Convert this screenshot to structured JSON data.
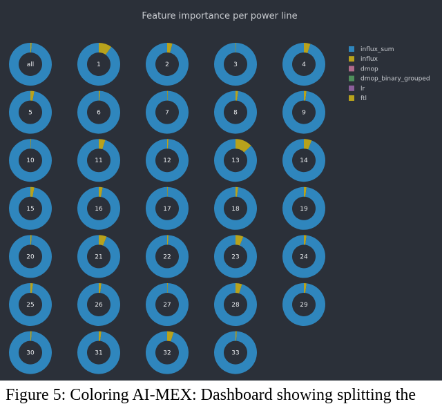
{
  "chart_data": {
    "type": "pie",
    "subtype": "donut-grid",
    "title": "Feature importance per power line",
    "legend": [
      "influx_sum",
      "influx",
      "dmop",
      "dmop_binary_grouped",
      "lr",
      "ftl"
    ],
    "colors": [
      "#2f86bd",
      "#b8a21c",
      "#b06a8b",
      "#4f8f5b",
      "#8b5e9b",
      "#b8a21c"
    ],
    "legend_placement": "top-right",
    "charts": [
      {
        "label": "all",
        "values": [
          0.99,
          0.0,
          0.0,
          0.0,
          0.0,
          0.01
        ]
      },
      {
        "label": "1",
        "values": [
          0.9,
          0.0,
          0.0,
          0.0,
          0.0,
          0.1
        ]
      },
      {
        "label": "2",
        "values": [
          0.96,
          0.0,
          0.0,
          0.0,
          0.0,
          0.04
        ]
      },
      {
        "label": "3",
        "values": [
          0.995,
          0.0,
          0.0,
          0.0,
          0.0,
          0.005
        ]
      },
      {
        "label": "4",
        "values": [
          0.95,
          0.0,
          0.0,
          0.0,
          0.0,
          0.05
        ]
      },
      {
        "label": "5",
        "values": [
          0.97,
          0.0,
          0.0,
          0.0,
          0.0,
          0.03
        ]
      },
      {
        "label": "6",
        "values": [
          0.99,
          0.0,
          0.0,
          0.0,
          0.0,
          0.01
        ]
      },
      {
        "label": "7",
        "values": [
          0.995,
          0.0,
          0.0,
          0.0,
          0.0,
          0.005
        ]
      },
      {
        "label": "8",
        "values": [
          0.98,
          0.0,
          0.0,
          0.0,
          0.0,
          0.02
        ]
      },
      {
        "label": "9",
        "values": [
          0.98,
          0.0,
          0.0,
          0.0,
          0.0,
          0.02
        ]
      },
      {
        "label": "10",
        "values": [
          0.995,
          0.0,
          0.0,
          0.0,
          0.0,
          0.005
        ]
      },
      {
        "label": "11",
        "values": [
          0.95,
          0.0,
          0.0,
          0.0,
          0.0,
          0.05
        ]
      },
      {
        "label": "12",
        "values": [
          0.99,
          0.0,
          0.0,
          0.0,
          0.0,
          0.01
        ]
      },
      {
        "label": "13",
        "values": [
          0.87,
          0.0,
          0.0,
          0.0,
          0.0,
          0.13
        ]
      },
      {
        "label": "14",
        "values": [
          0.94,
          0.0,
          0.0,
          0.0,
          0.0,
          0.06
        ]
      },
      {
        "label": "15",
        "values": [
          0.97,
          0.0,
          0.0,
          0.0,
          0.0,
          0.03
        ]
      },
      {
        "label": "16",
        "values": [
          0.97,
          0.0,
          0.0,
          0.0,
          0.0,
          0.03
        ]
      },
      {
        "label": "17",
        "values": [
          0.995,
          0.0,
          0.0,
          0.0,
          0.0,
          0.005
        ]
      },
      {
        "label": "18",
        "values": [
          0.98,
          0.0,
          0.0,
          0.0,
          0.0,
          0.02
        ]
      },
      {
        "label": "19",
        "values": [
          0.98,
          0.0,
          0.0,
          0.0,
          0.0,
          0.02
        ]
      },
      {
        "label": "20",
        "values": [
          0.99,
          0.0,
          0.0,
          0.0,
          0.0,
          0.01
        ]
      },
      {
        "label": "21",
        "values": [
          0.94,
          0.0,
          0.0,
          0.0,
          0.0,
          0.06
        ]
      },
      {
        "label": "22",
        "values": [
          0.99,
          0.0,
          0.0,
          0.0,
          0.0,
          0.01
        ]
      },
      {
        "label": "23",
        "values": [
          0.94,
          0.0,
          0.0,
          0.0,
          0.0,
          0.06
        ]
      },
      {
        "label": "24",
        "values": [
          0.98,
          0.0,
          0.0,
          0.0,
          0.0,
          0.02
        ]
      },
      {
        "label": "25",
        "values": [
          0.98,
          0.0,
          0.0,
          0.0,
          0.0,
          0.02
        ]
      },
      {
        "label": "26",
        "values": [
          0.98,
          0.0,
          0.0,
          0.0,
          0.0,
          0.02
        ]
      },
      {
        "label": "27",
        "values": [
          0.995,
          0.0,
          0.0,
          0.0,
          0.0,
          0.005
        ]
      },
      {
        "label": "28",
        "values": [
          0.95,
          0.0,
          0.0,
          0.0,
          0.0,
          0.05
        ]
      },
      {
        "label": "29",
        "values": [
          0.98,
          0.0,
          0.0,
          0.0,
          0.0,
          0.02
        ]
      },
      {
        "label": "30",
        "values": [
          0.99,
          0.0,
          0.0,
          0.0,
          0.0,
          0.01
        ]
      },
      {
        "label": "31",
        "values": [
          0.98,
          0.0,
          0.0,
          0.0,
          0.0,
          0.02
        ]
      },
      {
        "label": "32",
        "values": [
          0.95,
          0.0,
          0.0,
          0.0,
          0.0,
          0.05
        ]
      },
      {
        "label": "33",
        "values": [
          0.99,
          0.0,
          0.0,
          0.0,
          0.0,
          0.01
        ]
      }
    ]
  },
  "caption": "Figure 5: Coloring AI-MEX: Dashboard showing splitting the"
}
